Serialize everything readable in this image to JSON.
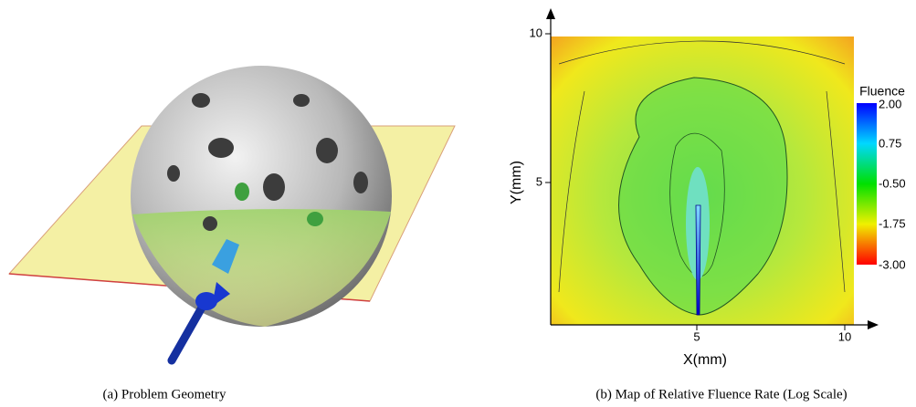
{
  "figure": {
    "panels": [
      {
        "caption": "(a)  Problem Geometry"
      },
      {
        "caption": "(b)  Map of Relative Fluence Rate (Log Scale)",
        "x_label": "X(mm)",
        "y_label": "Y(mm)",
        "x_ticks": [
          "5",
          "10"
        ],
        "y_ticks": [
          "10",
          "5"
        ],
        "colorbar_title": "Fluence",
        "colorbar_ticks": [
          "2.00",
          "0.75",
          "-0.50",
          "-1.75",
          "-3.00"
        ]
      }
    ]
  }
}
